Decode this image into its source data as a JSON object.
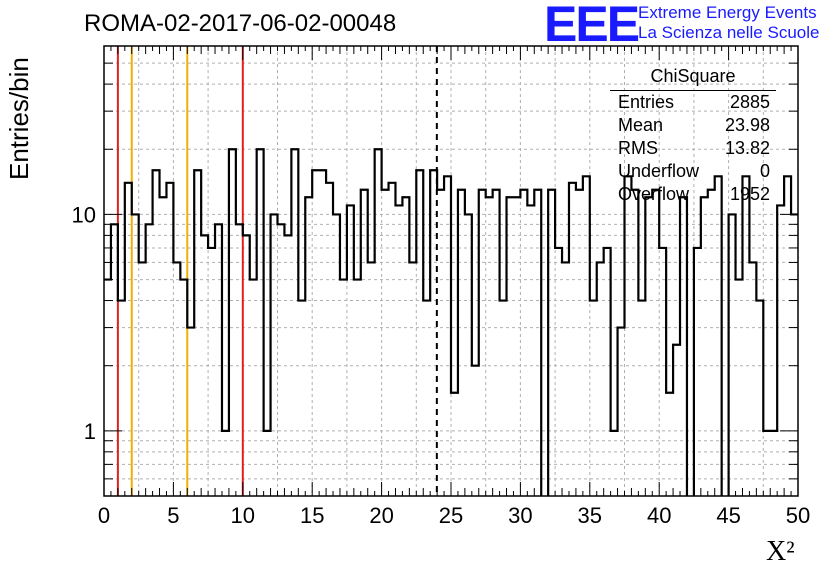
{
  "header": {
    "title": "ROMA-02-2017-06-02-00048",
    "logo_text": "EEE",
    "logo_line1": "Extreme Energy Events",
    "logo_line2": "La Scienza nelle Scuole",
    "logo_color": "#1a1aff"
  },
  "stats_box": {
    "title": "ChiSquare",
    "rows": [
      {
        "label": "Entries",
        "value": "2885"
      },
      {
        "label": "Mean",
        "value": "23.98"
      },
      {
        "label": "RMS",
        "value": "13.82"
      },
      {
        "label": "Underflow",
        "value": "0"
      },
      {
        "label": "Overflow",
        "value": "1952"
      }
    ]
  },
  "chart_data": {
    "type": "histogram",
    "title": "ROMA-02-2017-06-02-00048",
    "xlabel": "X²",
    "ylabel": "Entries/bin",
    "xlim": [
      0,
      50
    ],
    "ylim": [
      0.5,
      60
    ],
    "yscale": "log",
    "grid": true,
    "bin_width": 0.5,
    "x_ticks": [
      "0",
      "5",
      "10",
      "15",
      "20",
      "25",
      "30",
      "35",
      "40",
      "45",
      "50"
    ],
    "y_ticks": [
      "1",
      "10"
    ],
    "values": [
      5,
      9,
      4,
      14,
      10,
      6,
      9,
      16,
      12,
      14,
      6,
      5,
      3,
      16,
      8,
      7,
      9,
      1,
      20,
      9,
      8,
      5,
      20,
      1,
      10,
      9,
      8,
      20,
      4,
      12,
      16,
      16,
      14,
      10,
      5,
      11,
      5,
      13,
      6,
      20,
      13,
      14,
      11,
      12,
      6,
      16,
      4,
      16,
      13,
      15,
      1.5,
      13,
      10,
      2,
      13,
      12,
      13,
      4,
      12,
      12,
      13,
      11,
      13,
      0.4,
      13,
      7,
      6,
      14,
      13,
      15,
      4,
      6,
      7,
      1,
      3,
      15,
      13,
      4,
      12,
      13,
      7,
      1.5,
      2.5,
      12,
      0.4,
      7,
      12,
      13,
      15,
      0.4,
      10,
      5,
      15,
      6,
      4,
      1,
      1,
      11,
      15,
      10
    ],
    "reference_lines": [
      {
        "x": 1,
        "color": "#e02020",
        "style": "solid"
      },
      {
        "x": 2,
        "color": "#f0b000",
        "style": "solid"
      },
      {
        "x": 6,
        "color": "#f0b000",
        "style": "solid"
      },
      {
        "x": 10,
        "color": "#e02020",
        "style": "solid"
      },
      {
        "x": 23.98,
        "color": "#000000",
        "style": "dashed"
      }
    ]
  }
}
